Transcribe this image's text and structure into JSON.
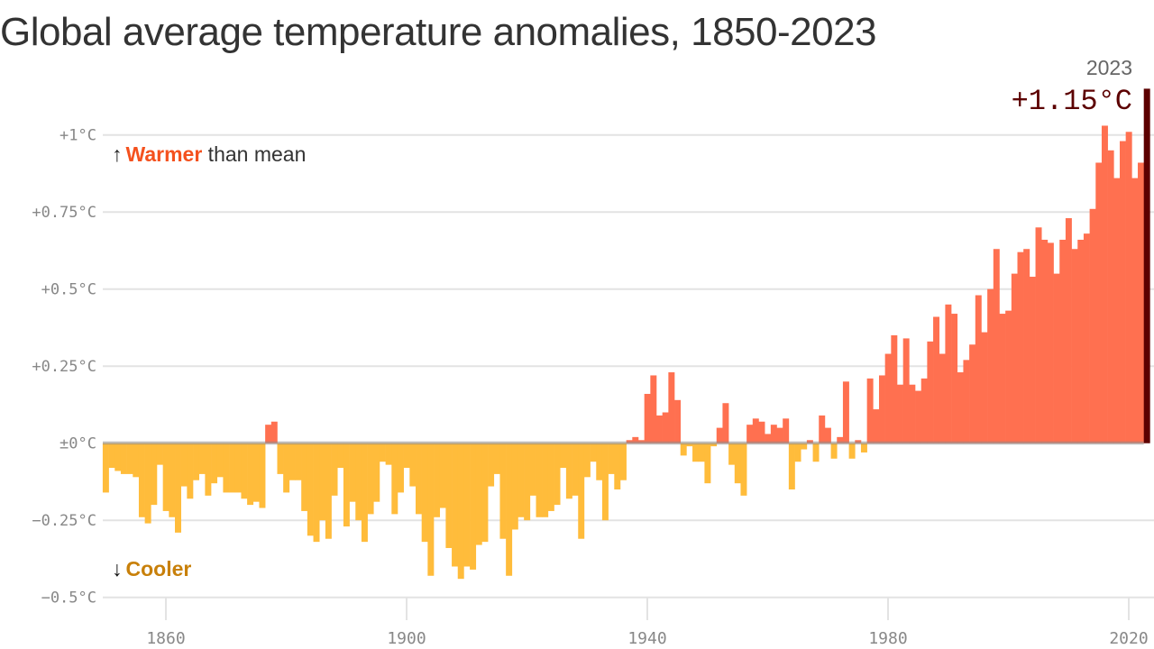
{
  "chart_data": {
    "type": "bar",
    "title": "Global average temperature anomalies, 1850-2023",
    "xlabel": "",
    "ylabel": "",
    "x_start": 1850,
    "x_end": 2023,
    "ylim": [
      -0.5,
      1.15
    ],
    "yticks": [
      {
        "value": 1,
        "label": "+1°C"
      },
      {
        "value": 0.75,
        "label": "+0.75°C"
      },
      {
        "value": 0.5,
        "label": "+0.5°C"
      },
      {
        "value": 0.25,
        "label": "+0.25°C"
      },
      {
        "value": 0,
        "label": "±0°C"
      },
      {
        "value": -0.25,
        "label": "−0.25°C"
      },
      {
        "value": -0.5,
        "label": "−0.5°C"
      }
    ],
    "xticks": [
      {
        "value": 1860,
        "label": "1860"
      },
      {
        "value": 1900,
        "label": "1900"
      },
      {
        "value": 1940,
        "label": "1940"
      },
      {
        "value": 1980,
        "label": "1980"
      },
      {
        "value": 2020,
        "label": "2020"
      }
    ],
    "values": [
      -0.16,
      -0.08,
      -0.09,
      -0.1,
      -0.1,
      -0.11,
      -0.24,
      -0.26,
      -0.2,
      -0.07,
      -0.22,
      -0.24,
      -0.29,
      -0.14,
      -0.18,
      -0.12,
      -0.1,
      -0.17,
      -0.13,
      -0.11,
      -0.16,
      -0.16,
      -0.16,
      -0.18,
      -0.2,
      -0.19,
      -0.21,
      0.06,
      0.07,
      -0.1,
      -0.16,
      -0.12,
      -0.12,
      -0.22,
      -0.3,
      -0.32,
      -0.25,
      -0.31,
      -0.17,
      -0.08,
      -0.27,
      -0.19,
      -0.25,
      -0.32,
      -0.23,
      -0.19,
      -0.06,
      -0.07,
      -0.23,
      -0.16,
      -0.08,
      -0.14,
      -0.23,
      -0.32,
      -0.43,
      -0.24,
      -0.21,
      -0.34,
      -0.4,
      -0.44,
      -0.4,
      -0.41,
      -0.33,
      -0.32,
      -0.14,
      -0.1,
      -0.31,
      -0.43,
      -0.28,
      -0.24,
      -0.25,
      -0.17,
      -0.24,
      -0.24,
      -0.22,
      -0.2,
      -0.08,
      -0.18,
      -0.17,
      -0.31,
      -0.11,
      -0.06,
      -0.12,
      -0.25,
      -0.1,
      -0.15,
      -0.12,
      0.01,
      0.02,
      0.01,
      0.16,
      0.22,
      0.09,
      0.1,
      0.23,
      0.14,
      -0.04,
      -0.01,
      -0.06,
      -0.06,
      -0.13,
      -0.01,
      0.05,
      0.13,
      -0.07,
      -0.13,
      -0.17,
      0.06,
      0.08,
      0.07,
      0.03,
      0.06,
      0.05,
      0.08,
      -0.15,
      -0.06,
      -0.02,
      0.01,
      -0.06,
      0.09,
      0.05,
      -0.05,
      0.02,
      0.2,
      -0.05,
      0.01,
      -0.03,
      0.21,
      0.11,
      0.22,
      0.29,
      0.35,
      0.19,
      0.34,
      0.19,
      0.17,
      0.21,
      0.33,
      0.41,
      0.29,
      0.45,
      0.42,
      0.23,
      0.27,
      0.32,
      0.48,
      0.36,
      0.5,
      0.63,
      0.42,
      0.43,
      0.55,
      0.62,
      0.63,
      0.54,
      0.7,
      0.66,
      0.65,
      0.55,
      0.66,
      0.73,
      0.63,
      0.66,
      0.68,
      0.76,
      0.91,
      1.03,
      0.95,
      0.86,
      0.98,
      1.01,
      0.86,
      0.91,
      1.15
    ],
    "colors": {
      "warm": "#ff7050",
      "cool": "#ffbc3b",
      "highlight": "#5c0000"
    },
    "annotations": {
      "warmer_arrow": "↑",
      "warmer_word": "Warmer",
      "warmer_rest": " than mean",
      "cooler_arrow": "↓",
      "cooler_word": "Cooler",
      "last_year": "2023",
      "last_value": "+1.15°C"
    }
  }
}
